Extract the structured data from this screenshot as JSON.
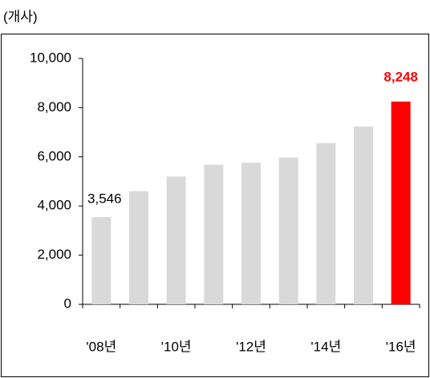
{
  "chart_data": {
    "type": "bar",
    "y_axis_label": "(개사)",
    "categories": [
      "'08년",
      null,
      "'10년",
      null,
      "'12년",
      null,
      "'14년",
      null,
      "'16년"
    ],
    "values": [
      3546,
      4600,
      5200,
      5680,
      5760,
      5970,
      6560,
      7230,
      8248
    ],
    "value_labels": [
      "3,546",
      null,
      null,
      null,
      null,
      null,
      null,
      null,
      "8,248"
    ],
    "colors": [
      "#d9d9d9",
      "#d9d9d9",
      "#d9d9d9",
      "#d9d9d9",
      "#d9d9d9",
      "#d9d9d9",
      "#d9d9d9",
      "#d9d9d9",
      "#ff0000"
    ],
    "ylim": [
      0,
      10000
    ],
    "yticks": [
      0,
      {
        "value": 2000,
        "label": "2,000"
      },
      {
        "value": 4000,
        "label": "4,000"
      },
      {
        "value": 6000,
        "label": "6,000"
      },
      {
        "value": 8000,
        "label": "8,000"
      },
      {
        "value": 10000,
        "label": "10,000"
      }
    ],
    "grid": false
  }
}
